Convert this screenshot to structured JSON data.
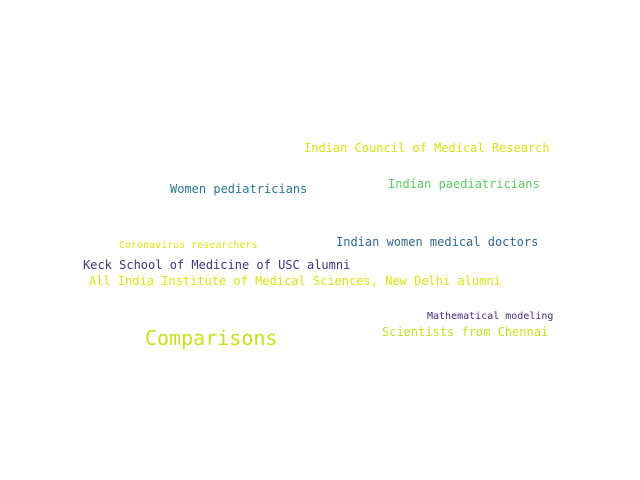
{
  "words": {
    "council": {
      "text": "Indian Council of Medical Research",
      "color": "#d7e219"
    },
    "paed": {
      "text": "Indian paediatricians",
      "color": "#5ec962"
    },
    "women_ped": {
      "text": "Women pediatricians",
      "color": "#2a788e"
    },
    "corona": {
      "text": "Coronavirus researchers",
      "color": "#dde318"
    },
    "indian_women": {
      "text": "Indian women medical doctors",
      "color": "#31688e"
    },
    "keck": {
      "text": "Keck School of Medicine of USC alumni",
      "color": "#46327e"
    },
    "aiims": {
      "text": "All India Institute of Medical Sciences, New Delhi alumni",
      "color": "#d8e219"
    },
    "math": {
      "text": "Mathematical modeling",
      "color": "#482878"
    },
    "chennai": {
      "text": "Scientists from Chennai",
      "color": "#c2df23"
    },
    "compare": {
      "text": "Comparisons",
      "color": "#c8e020"
    }
  }
}
